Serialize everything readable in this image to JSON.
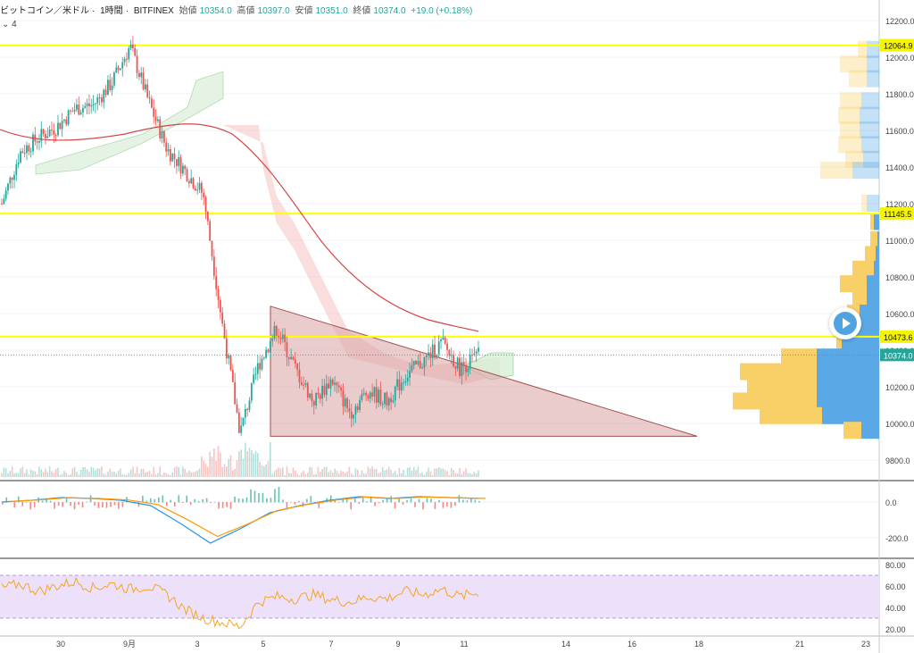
{
  "header": {
    "pair": "ビットコイン／米ドル",
    "timeframe": "1時間",
    "exchange": "BITFINEX",
    "open_label": "始値",
    "open": "10354.0",
    "high_label": "高値",
    "high": "10397.0",
    "low_label": "安値",
    "low": "10351.0",
    "close_label": "終値",
    "close": "10374.0",
    "change": "+19.0 (+0.18%)"
  },
  "indicator_count": "⌄ 4",
  "colors": {
    "up": "#26a69a",
    "down": "#ef5350",
    "level_line": "#ffff00",
    "level_label_bg": "#f5f500",
    "current_label_bg": "#26a69a",
    "macd_line": "#2196f3",
    "signal_line": "#ff9800",
    "rsi_line": "#f5a623",
    "rsi_band": "#ede0fb",
    "triangle_fill": "#d9a2a2",
    "ma_line": "#d64545",
    "vp_buy": "#f9d068",
    "vp_sell": "#5aa9e6"
  },
  "chart_data": [
    {
      "type": "candlestick",
      "title": "ビットコイン／米ドル · 1時間 · BITFINEX",
      "ylim": [
        9700,
        12250
      ],
      "yticks": [
        "12200.0",
        "12000.0",
        "11800.0",
        "11600.0",
        "11400.0",
        "11200.0",
        "11000.0",
        "10800.0",
        "10600.0",
        "10400.0",
        "10200.0",
        "10000.0",
        "9800.0"
      ],
      "xticks": [
        "30",
        "9月",
        "3",
        "5",
        "7",
        "9",
        "11",
        "14",
        "16",
        "18",
        "21",
        "23"
      ],
      "horizontal_levels": [
        {
          "label": "12064.9",
          "value": 12064.9
        },
        {
          "label": "11145.5",
          "value": 11145.5
        },
        {
          "label": "10473.6",
          "value": 10473.6
        }
      ],
      "current_price": {
        "label": "10374.0",
        "value": 10374.0
      },
      "trend_line": {
        "from": {
          "x": "9月5日",
          "y": 10640
        },
        "to": {
          "x": "9月18日",
          "y": 9930
        }
      },
      "support_line": {
        "value": 9930
      },
      "close_path": [
        11200,
        11480,
        11560,
        11620,
        11720,
        11740,
        11860,
        12060,
        11760,
        11500,
        11380,
        11250,
        10560,
        9950,
        10320,
        10520,
        10300,
        10120,
        10240,
        10060,
        10180,
        10120,
        10260,
        10340,
        10440,
        10300,
        10374
      ]
    },
    {
      "type": "line",
      "title": "MACD",
      "yticks": [
        "0.0",
        "-200.0"
      ],
      "series": [
        {
          "values": [
            0,
            10,
            25,
            20,
            10,
            -20,
            -120,
            -230,
            -150,
            -60,
            -20,
            10,
            30,
            20,
            30,
            25,
            20
          ]
        }
      ]
    },
    {
      "type": "line",
      "title": "RSI",
      "yticks": [
        "80.00",
        "60.00",
        "40.00",
        "20.00"
      ],
      "ylim": [
        20,
        80
      ],
      "band": [
        30,
        70
      ],
      "series": [
        {
          "values": [
            58,
            62,
            55,
            60,
            64,
            58,
            62,
            57,
            60,
            52,
            38,
            30,
            26,
            22,
            45,
            50,
            48,
            52,
            47,
            45,
            50,
            48,
            55,
            52,
            57,
            50,
            54
          ]
        }
      ]
    }
  ]
}
